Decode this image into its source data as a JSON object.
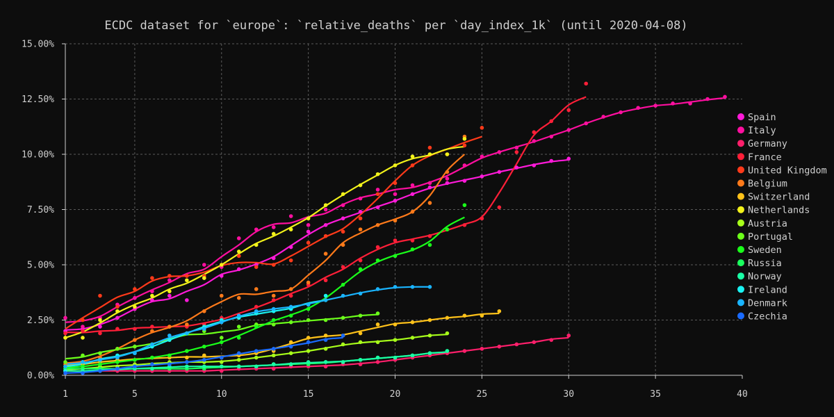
{
  "chart_data": {
    "type": "scatter",
    "title": "ECDC dataset for `europe`: `relative_deaths` per `day_index_1k` (until 2020-04-08)",
    "xlabel": "",
    "ylabel": "",
    "xlim": [
      1,
      40
    ],
    "ylim": [
      0,
      15
    ],
    "x_ticks": [
      1,
      5,
      10,
      15,
      20,
      25,
      30,
      35,
      40
    ],
    "y_ticks": [
      0,
      2.5,
      5,
      7.5,
      10,
      12.5,
      15
    ],
    "y_tick_labels": [
      "0.00%",
      "2.50%",
      "5.00%",
      "7.50%",
      "10.00%",
      "12.50%",
      "15.00%"
    ],
    "grid": true,
    "legend_position": "right",
    "series": [
      {
        "name": "Spain",
        "color": "#ff1ad9",
        "x": [
          1,
          2,
          3,
          4,
          5,
          6,
          7,
          8,
          9,
          10,
          11,
          12,
          13,
          14,
          15,
          16,
          17,
          18,
          19,
          20,
          21,
          22,
          23,
          24,
          25,
          26,
          27,
          28,
          29,
          30
        ],
        "y": [
          2.0,
          2.1,
          2.2,
          2.6,
          3.0,
          3.4,
          3.6,
          3.4,
          4.4,
          4.5,
          4.8,
          5.0,
          5.3,
          5.8,
          6.5,
          6.8,
          7.1,
          7.4,
          7.6,
          7.9,
          8.2,
          8.5,
          8.7,
          8.8,
          9.0,
          9.2,
          9.4,
          9.5,
          9.7,
          9.8
        ]
      },
      {
        "name": "Italy",
        "color": "#ff0fa0",
        "x": [
          1,
          2,
          3,
          4,
          5,
          6,
          7,
          8,
          9,
          10,
          11,
          12,
          13,
          14,
          15,
          16,
          17,
          18,
          19,
          20,
          21,
          22,
          23,
          24,
          25,
          26,
          27,
          28,
          29,
          30,
          31,
          32,
          33,
          34,
          35,
          36,
          37,
          38,
          39
        ],
        "y": [
          2.6,
          2.2,
          2.6,
          3.2,
          3.5,
          3.8,
          4.3,
          4.5,
          5.0,
          4.9,
          6.2,
          6.6,
          6.7,
          7.2,
          6.8,
          7.5,
          7.7,
          8.0,
          8.4,
          8.2,
          8.6,
          8.7,
          8.9,
          9.5,
          9.9,
          10.1,
          10.3,
          10.6,
          10.8,
          11.1,
          11.4,
          11.7,
          11.9,
          12.1,
          12.2,
          12.3,
          12.3,
          12.5,
          12.6
        ]
      },
      {
        "name": "Germany",
        "color": "#ff1f6b",
        "x": [
          1,
          2,
          3,
          4,
          5,
          6,
          7,
          8,
          9,
          10,
          11,
          12,
          13,
          14,
          15,
          16,
          17,
          18,
          19,
          20,
          21,
          22,
          23,
          24,
          25,
          26,
          27,
          28,
          29,
          30
        ],
        "y": [
          0.2,
          0.2,
          0.2,
          0.2,
          0.2,
          0.2,
          0.2,
          0.2,
          0.2,
          0.2,
          0.3,
          0.3,
          0.3,
          0.4,
          0.4,
          0.4,
          0.5,
          0.5,
          0.6,
          0.7,
          0.8,
          0.9,
          1.0,
          1.1,
          1.2,
          1.3,
          1.4,
          1.5,
          1.6,
          1.8
        ]
      },
      {
        "name": "France",
        "color": "#ff1f38",
        "x": [
          1,
          2,
          3,
          4,
          5,
          6,
          7,
          8,
          9,
          10,
          11,
          12,
          13,
          14,
          15,
          16,
          17,
          18,
          19,
          20,
          21,
          22,
          23,
          24,
          25,
          26,
          27,
          28,
          29,
          30,
          31
        ],
        "y": [
          1.9,
          2.0,
          1.9,
          2.1,
          2.1,
          2.2,
          2.2,
          2.2,
          2.3,
          2.6,
          2.7,
          3.1,
          3.4,
          3.6,
          4.1,
          4.3,
          4.9,
          5.2,
          5.8,
          6.1,
          6.1,
          6.3,
          6.6,
          6.8,
          7.1,
          7.6,
          10.1,
          11.0,
          11.5,
          12.0,
          13.2
        ]
      },
      {
        "name": "United Kingdom",
        "color": "#ff3a1a",
        "x": [
          1,
          2,
          3,
          4,
          5,
          6,
          7,
          8,
          9,
          10,
          11,
          12,
          13,
          14,
          15,
          16,
          17,
          18,
          19,
          20,
          21,
          22,
          23,
          24,
          25
        ],
        "y": [
          1.7,
          2.5,
          3.6,
          3.1,
          3.9,
          4.4,
          4.5,
          4.5,
          4.5,
          5.0,
          5.4,
          4.9,
          5.0,
          5.2,
          6.0,
          6.3,
          6.5,
          7.1,
          8.2,
          8.7,
          9.5,
          10.3,
          10.0,
          10.4,
          11.2
        ]
      },
      {
        "name": "Belgium",
        "color": "#ff7a1a",
        "x": [
          1,
          2,
          3,
          4,
          5,
          6,
          7,
          8,
          9,
          10,
          11,
          12,
          13,
          14,
          15,
          16,
          17,
          18,
          19,
          20,
          21,
          22,
          23,
          24
        ],
        "y": [
          0.5,
          0.6,
          0.8,
          1.2,
          1.6,
          2.0,
          2.2,
          2.3,
          2.9,
          3.6,
          3.5,
          3.9,
          3.6,
          3.9,
          4.2,
          5.5,
          5.9,
          6.6,
          6.8,
          7.0,
          7.4,
          7.8,
          9.2,
          10.8
        ]
      },
      {
        "name": "Switzerland",
        "color": "#ffc21a",
        "x": [
          1,
          2,
          3,
          4,
          5,
          6,
          7,
          8,
          9,
          10,
          11,
          12,
          13,
          14,
          15,
          16,
          17,
          18,
          19,
          20,
          21,
          22,
          23,
          24,
          25,
          26
        ],
        "y": [
          0.4,
          0.5,
          0.6,
          0.7,
          0.7,
          0.8,
          0.8,
          0.8,
          0.9,
          0.8,
          0.9,
          1.0,
          1.1,
          1.5,
          1.7,
          1.8,
          1.8,
          1.9,
          2.3,
          2.3,
          2.4,
          2.5,
          2.6,
          2.7,
          2.7,
          2.9
        ]
      },
      {
        "name": "Netherlands",
        "color": "#f2f21a",
        "x": [
          1,
          2,
          3,
          4,
          5,
          6,
          7,
          8,
          9,
          10,
          11,
          12,
          13,
          14,
          15,
          16,
          17,
          18,
          19,
          20,
          21,
          22,
          23,
          24
        ],
        "y": [
          1.7,
          1.7,
          2.5,
          2.9,
          3.1,
          3.6,
          3.8,
          4.3,
          4.4,
          5.0,
          5.6,
          5.9,
          6.4,
          6.6,
          7.1,
          7.7,
          8.2,
          8.6,
          9.1,
          9.5,
          9.9,
          10.0,
          10.0,
          10.7
        ]
      },
      {
        "name": "Austria",
        "color": "#a8ff1a",
        "x": [
          1,
          2,
          3,
          4,
          5,
          6,
          7,
          8,
          9,
          10,
          11,
          12,
          13,
          14,
          15,
          16,
          17,
          18,
          19,
          20,
          21,
          22,
          23
        ],
        "y": [
          0.2,
          0.3,
          0.4,
          0.4,
          0.5,
          0.5,
          0.6,
          0.6,
          0.6,
          0.6,
          0.7,
          0.8,
          0.9,
          1.0,
          1.1,
          1.2,
          1.4,
          1.5,
          1.5,
          1.6,
          1.7,
          1.8,
          1.9
        ]
      },
      {
        "name": "Portugal",
        "color": "#6cff1a",
        "x": [
          1,
          2,
          3,
          4,
          5,
          6,
          7,
          8,
          9,
          10,
          11,
          12,
          13,
          14,
          15,
          16,
          17,
          18,
          19
        ],
        "y": [
          0.6,
          0.9,
          1.0,
          1.2,
          1.3,
          1.4,
          1.6,
          1.9,
          2.0,
          1.7,
          2.2,
          2.3,
          2.3,
          2.4,
          2.5,
          2.5,
          2.6,
          2.7,
          2.8
        ]
      },
      {
        "name": "Sweden",
        "color": "#1aff1a",
        "x": [
          1,
          2,
          3,
          4,
          5,
          6,
          7,
          8,
          9,
          10,
          11,
          12,
          13,
          14,
          15,
          16,
          17,
          18,
          19,
          20,
          21,
          22,
          23,
          24
        ],
        "y": [
          0.3,
          0.4,
          0.5,
          0.6,
          0.7,
          0.8,
          0.9,
          1.1,
          1.3,
          1.5,
          1.7,
          2.2,
          2.5,
          2.7,
          3.0,
          3.4,
          4.1,
          4.8,
          5.2,
          5.4,
          5.7,
          5.9,
          6.6,
          7.7
        ]
      },
      {
        "name": "Russia",
        "color": "#1aff5e",
        "x": [
          1,
          2,
          3,
          4,
          5,
          6,
          7,
          8,
          9,
          10,
          11,
          12,
          13,
          14,
          15,
          16,
          17,
          18,
          19,
          20,
          21,
          22,
          23
        ],
        "y": [
          0.3,
          0.3,
          0.3,
          0.3,
          0.3,
          0.3,
          0.3,
          0.3,
          0.3,
          0.4,
          0.4,
          0.4,
          0.5,
          0.5,
          0.5,
          0.6,
          0.6,
          0.7,
          0.8,
          0.8,
          0.9,
          1.0,
          1.1
        ]
      },
      {
        "name": "Norway",
        "color": "#1affa6",
        "x": [
          1,
          2,
          3,
          4,
          5,
          6,
          7,
          8,
          9,
          10,
          11,
          12,
          13,
          14,
          15,
          16,
          17,
          18,
          19,
          20,
          21,
          22,
          23
        ],
        "y": [
          0.2,
          0.2,
          0.2,
          0.3,
          0.3,
          0.3,
          0.4,
          0.4,
          0.4,
          0.4,
          0.4,
          0.4,
          0.5,
          0.5,
          0.6,
          0.6,
          0.6,
          0.7,
          0.8,
          0.8,
          0.9,
          1.0,
          1.1
        ]
      },
      {
        "name": "Ireland",
        "color": "#1af2f2",
        "x": [
          1,
          2,
          3,
          4,
          5,
          6,
          7,
          8,
          9,
          10,
          11,
          12,
          13,
          14,
          15,
          16
        ],
        "y": [
          0.2,
          0.6,
          0.7,
          0.9,
          1.0,
          1.3,
          1.6,
          1.9,
          2.2,
          2.5,
          2.6,
          2.8,
          2.9,
          3.0,
          3.2,
          3.6
        ]
      },
      {
        "name": "Denmark",
        "color": "#1ab4ff",
        "x": [
          1,
          2,
          3,
          4,
          5,
          6,
          7,
          8,
          9,
          10,
          11,
          12,
          13,
          14,
          15,
          16,
          17,
          18,
          19,
          20,
          21,
          22
        ],
        "y": [
          0.4,
          0.6,
          0.7,
          0.8,
          1.0,
          1.4,
          1.8,
          1.9,
          2.1,
          2.4,
          2.7,
          2.9,
          3.0,
          3.1,
          3.2,
          3.4,
          3.6,
          3.7,
          3.9,
          4.0,
          4.0,
          4.0
        ]
      },
      {
        "name": "Czechia",
        "color": "#1a6bff",
        "x": [
          1,
          2,
          3,
          4,
          5,
          6,
          7,
          8,
          9,
          10,
          11,
          12,
          13,
          14,
          15,
          16,
          17
        ],
        "y": [
          0.1,
          0.1,
          0.2,
          0.3,
          0.4,
          0.5,
          0.5,
          0.6,
          0.7,
          0.8,
          1.0,
          1.1,
          1.2,
          1.3,
          1.5,
          1.6,
          1.8
        ]
      }
    ]
  }
}
